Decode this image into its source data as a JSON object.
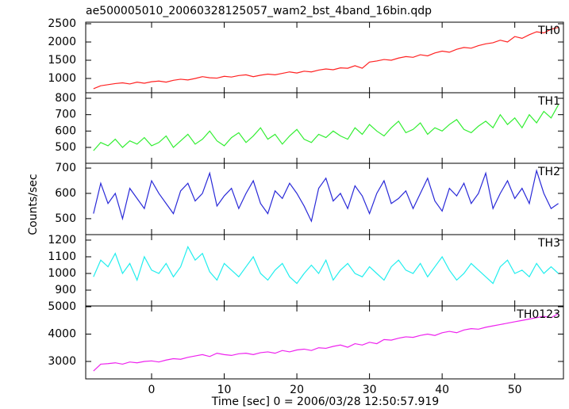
{
  "chart_data": [
    {
      "type": "line",
      "title": "ae500005010_20060328125057_wam2_bst_4band_16bin.qdp",
      "ylabel": "Counts/sec",
      "x": [
        -8,
        -7,
        -6,
        -5,
        -4,
        -3,
        -2,
        -1,
        0,
        1,
        2,
        3,
        4,
        5,
        6,
        7,
        8,
        9,
        10,
        11,
        12,
        13,
        14,
        15,
        16,
        17,
        18,
        19,
        20,
        21,
        22,
        23,
        24,
        25,
        26,
        27,
        28,
        29,
        30,
        31,
        32,
        33,
        34,
        35,
        36,
        37,
        38,
        39,
        40,
        41,
        42,
        43,
        44,
        45,
        46,
        47,
        48,
        49,
        50,
        51,
        52,
        53,
        54,
        55,
        56
      ],
      "series": [
        {
          "name": "TH0",
          "color": "#ff2222",
          "values": [
            720,
            800,
            830,
            860,
            880,
            850,
            900,
            870,
            910,
            930,
            900,
            950,
            980,
            960,
            1000,
            1050,
            1020,
            1010,
            1060,
            1040,
            1080,
            1100,
            1050,
            1090,
            1120,
            1100,
            1140,
            1180,
            1150,
            1200,
            1180,
            1230,
            1260,
            1240,
            1290,
            1280,
            1350,
            1280,
            1450,
            1480,
            1520,
            1500,
            1560,
            1600,
            1580,
            1650,
            1620,
            1700,
            1750,
            1720,
            1800,
            1850,
            1830,
            1900,
            1950,
            1980,
            2050,
            2000,
            2150,
            2100,
            2200,
            2280,
            2250,
            2350,
            2400
          ]
        }
      ],
      "xlim": [
        -9.07,
        56.7
      ],
      "ylim": [
        609,
        2543
      ],
      "yticks": [
        1000,
        1500,
        2000,
        2500
      ]
    },
    {
      "type": "line",
      "x": [
        -8,
        -7,
        -6,
        -5,
        -4,
        -3,
        -2,
        -1,
        0,
        1,
        2,
        3,
        4,
        5,
        6,
        7,
        8,
        9,
        10,
        11,
        12,
        13,
        14,
        15,
        16,
        17,
        18,
        19,
        20,
        21,
        22,
        23,
        24,
        25,
        26,
        27,
        28,
        29,
        30,
        31,
        32,
        33,
        34,
        35,
        36,
        37,
        38,
        39,
        40,
        41,
        42,
        43,
        44,
        45,
        46,
        47,
        48,
        49,
        50,
        51,
        52,
        53,
        54,
        55,
        56
      ],
      "series": [
        {
          "name": "TH1",
          "color": "#33ee33",
          "values": [
            480,
            530,
            510,
            550,
            500,
            540,
            520,
            560,
            510,
            530,
            570,
            500,
            540,
            580,
            520,
            550,
            600,
            540,
            510,
            560,
            590,
            530,
            570,
            620,
            550,
            580,
            520,
            570,
            610,
            550,
            530,
            580,
            560,
            600,
            570,
            550,
            620,
            580,
            640,
            600,
            570,
            620,
            660,
            590,
            610,
            650,
            580,
            620,
            600,
            640,
            670,
            610,
            590,
            630,
            660,
            620,
            700,
            640,
            680,
            620,
            700,
            650,
            720,
            680,
            760
          ]
        }
      ],
      "xlim": [
        -9.07,
        56.7
      ],
      "ylim": [
        403,
        834
      ],
      "yticks": [
        500,
        600,
        700,
        800
      ]
    },
    {
      "type": "line",
      "x": [
        -8,
        -7,
        -6,
        -5,
        -4,
        -3,
        -2,
        -1,
        0,
        1,
        2,
        3,
        4,
        5,
        6,
        7,
        8,
        9,
        10,
        11,
        12,
        13,
        14,
        15,
        16,
        17,
        18,
        19,
        20,
        21,
        22,
        23,
        24,
        25,
        26,
        27,
        28,
        29,
        30,
        31,
        32,
        33,
        34,
        35,
        36,
        37,
        38,
        39,
        40,
        41,
        42,
        43,
        44,
        45,
        46,
        47,
        48,
        49,
        50,
        51,
        52,
        53,
        54,
        55,
        56
      ],
      "series": [
        {
          "name": "TH2",
          "color": "#2a2ad8",
          "values": [
            520,
            640,
            560,
            600,
            500,
            620,
            580,
            540,
            650,
            600,
            560,
            520,
            610,
            640,
            570,
            600,
            680,
            550,
            590,
            620,
            540,
            600,
            650,
            560,
            520,
            610,
            580,
            640,
            600,
            550,
            490,
            620,
            660,
            570,
            600,
            540,
            630,
            590,
            520,
            600,
            650,
            560,
            580,
            610,
            540,
            600,
            660,
            570,
            530,
            620,
            590,
            640,
            560,
            600,
            680,
            540,
            600,
            650,
            580,
            620,
            560,
            690,
            600,
            540,
            560
          ]
        }
      ],
      "xlim": [
        -9.07,
        56.7
      ],
      "ylim": [
        437,
        719
      ],
      "yticks": [
        500,
        600,
        700
      ]
    },
    {
      "type": "line",
      "x": [
        -8,
        -7,
        -6,
        -5,
        -4,
        -3,
        -2,
        -1,
        0,
        1,
        2,
        3,
        4,
        5,
        6,
        7,
        8,
        9,
        10,
        11,
        12,
        13,
        14,
        15,
        16,
        17,
        18,
        19,
        20,
        21,
        22,
        23,
        24,
        25,
        26,
        27,
        28,
        29,
        30,
        31,
        32,
        33,
        34,
        35,
        36,
        37,
        38,
        39,
        40,
        41,
        42,
        43,
        44,
        45,
        46,
        47,
        48,
        49,
        50,
        51,
        52,
        53,
        54,
        55,
        56
      ],
      "series": [
        {
          "name": "TH3",
          "color": "#22eeee",
          "values": [
            980,
            1080,
            1040,
            1120,
            1000,
            1060,
            960,
            1100,
            1020,
            1000,
            1060,
            980,
            1040,
            1160,
            1080,
            1120,
            1010,
            960,
            1060,
            1020,
            980,
            1040,
            1100,
            1000,
            960,
            1020,
            1060,
            980,
            940,
            1000,
            1050,
            1000,
            1080,
            960,
            1020,
            1060,
            1000,
            980,
            1040,
            1000,
            960,
            1040,
            1080,
            1020,
            1000,
            1060,
            980,
            1040,
            1100,
            1020,
            960,
            1000,
            1060,
            1020,
            980,
            940,
            1040,
            1080,
            1000,
            1020,
            980,
            1060,
            1000,
            1040,
            1000
          ]
        }
      ],
      "xlim": [
        -9.07,
        56.7
      ],
      "ylim": [
        805,
        1233
      ],
      "yticks": [
        900,
        1000,
        1100,
        1200
      ]
    },
    {
      "type": "line",
      "xlabel": "Time [sec] 0 = 2006/03/28 12:50:57.919",
      "x": [
        -8,
        -7,
        -6,
        -5,
        -4,
        -3,
        -2,
        -1,
        0,
        1,
        2,
        3,
        4,
        5,
        6,
        7,
        8,
        9,
        10,
        11,
        12,
        13,
        14,
        15,
        16,
        17,
        18,
        19,
        20,
        21,
        22,
        23,
        24,
        25,
        26,
        27,
        28,
        29,
        30,
        31,
        32,
        33,
        34,
        35,
        36,
        37,
        38,
        39,
        40,
        41,
        42,
        43,
        44,
        45,
        46,
        47,
        48,
        49,
        50,
        51,
        52,
        53,
        54,
        55,
        56
      ],
      "series": [
        {
          "name": "TH0123",
          "color": "#ee22ee",
          "values": [
            2650,
            2900,
            2920,
            2950,
            2900,
            2980,
            2950,
            3000,
            3020,
            2980,
            3050,
            3100,
            3080,
            3150,
            3200,
            3250,
            3180,
            3300,
            3250,
            3220,
            3280,
            3300,
            3250,
            3320,
            3350,
            3300,
            3400,
            3350,
            3420,
            3450,
            3400,
            3500,
            3480,
            3550,
            3600,
            3520,
            3650,
            3600,
            3700,
            3650,
            3800,
            3780,
            3850,
            3900,
            3880,
            3950,
            4000,
            3950,
            4050,
            4100,
            4050,
            4150,
            4200,
            4180,
            4250,
            4300,
            4350,
            4400,
            4450,
            4500,
            4550,
            4600,
            4650,
            4600,
            4750
          ]
        }
      ],
      "xlim": [
        -9.07,
        56.7
      ],
      "ylim": [
        2362,
        5029
      ],
      "yticks": [
        3000,
        4000,
        5000
      ],
      "xticks": [
        0,
        10,
        20,
        30,
        40,
        50
      ]
    }
  ]
}
